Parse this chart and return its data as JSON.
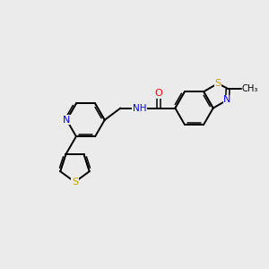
{
  "background_color": "#ebebeb",
  "bond_color": "#000000",
  "atom_colors": {
    "N": "#0000ff",
    "S": "#c8a000",
    "O": "#ff0000",
    "C": "#000000"
  },
  "figsize": [
    3.0,
    3.0
  ],
  "dpi": 100
}
